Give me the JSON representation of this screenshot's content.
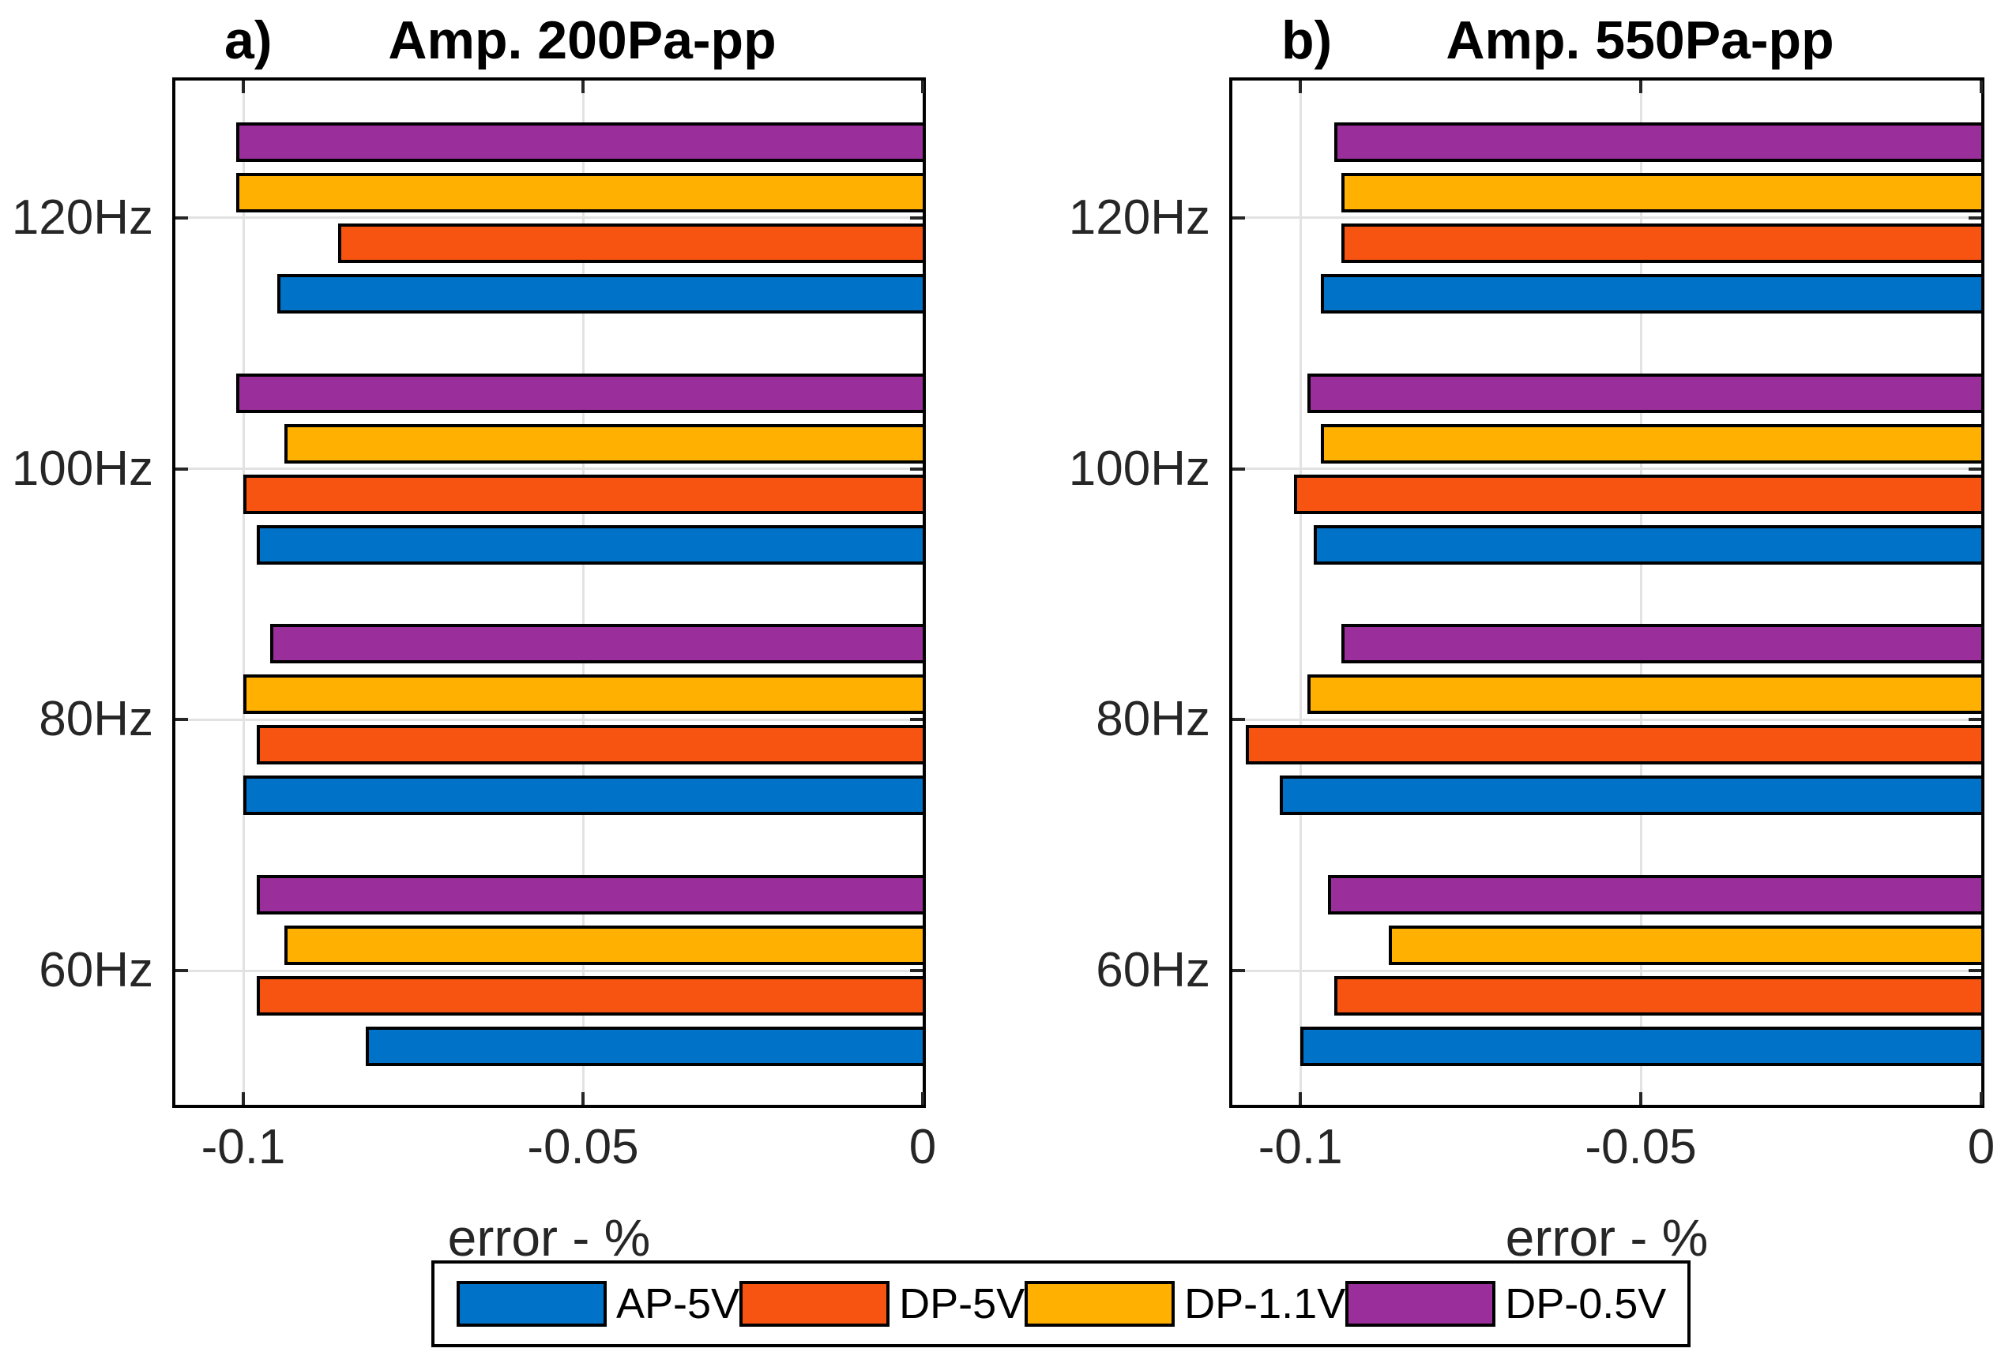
{
  "page": {
    "background": "#ffffff"
  },
  "style": {
    "axis_color": "#000000",
    "grid_color": "#E2E2E2",
    "tick_color": "#262626",
    "bar_edge_color": "#000000"
  },
  "legend": {
    "entries": [
      {
        "label": "AP-5V",
        "color": "#0072C8"
      },
      {
        "label": "DP-5V",
        "color": "#F85411"
      },
      {
        "label": "DP-1.1V",
        "color": "#FFB000"
      },
      {
        "label": "DP-0.5V",
        "color": "#9A2E9B"
      }
    ]
  },
  "chart_data": [
    {
      "type": "bar",
      "orientation": "horizontal",
      "panel_label": "a)",
      "title": "Amp. 200Pa-pp",
      "categories": [
        "120Hz",
        "100Hz",
        "80Hz",
        "60Hz"
      ],
      "series": [
        {
          "name": "AP-5V",
          "color": "#0072C8",
          "values": [
            -0.095,
            -0.098,
            -0.1,
            -0.082
          ]
        },
        {
          "name": "DP-5V",
          "color": "#F85411",
          "values": [
            -0.086,
            -0.1,
            -0.098,
            -0.098
          ]
        },
        {
          "name": "DP-1.1V",
          "color": "#FFB000",
          "values": [
            -0.101,
            -0.094,
            -0.1,
            -0.094
          ]
        },
        {
          "name": "DP-0.5V",
          "color": "#9A2E9B",
          "values": [
            -0.101,
            -0.101,
            -0.096,
            -0.098
          ]
        }
      ],
      "xlabel": "error - %",
      "xlim": [
        -0.11,
        0
      ],
      "xticks": [
        -0.1,
        -0.05,
        0
      ],
      "xtick_labels": [
        "-0.1",
        "-0.05",
        "0"
      ],
      "grid": true,
      "legend_position": "south-outside"
    },
    {
      "type": "bar",
      "orientation": "horizontal",
      "panel_label": "b)",
      "title": "Amp. 550Pa-pp",
      "categories": [
        "120Hz",
        "100Hz",
        "80Hz",
        "60Hz"
      ],
      "series": [
        {
          "name": "AP-5V",
          "color": "#0072C8",
          "values": [
            -0.097,
            -0.098,
            -0.103,
            -0.1
          ]
        },
        {
          "name": "DP-5V",
          "color": "#F85411",
          "values": [
            -0.094,
            -0.101,
            -0.108,
            -0.095
          ]
        },
        {
          "name": "DP-1.1V",
          "color": "#FFB000",
          "values": [
            -0.094,
            -0.097,
            -0.099,
            -0.087
          ]
        },
        {
          "name": "DP-0.5V",
          "color": "#9A2E9B",
          "values": [
            -0.095,
            -0.099,
            -0.094,
            -0.096
          ]
        }
      ],
      "xlabel": "error - %",
      "xlim": [
        -0.11,
        0
      ],
      "xticks": [
        -0.1,
        -0.05,
        0
      ],
      "xtick_labels": [
        "-0.1",
        "-0.05",
        "0"
      ],
      "grid": true,
      "legend_position": "south-outside"
    }
  ]
}
